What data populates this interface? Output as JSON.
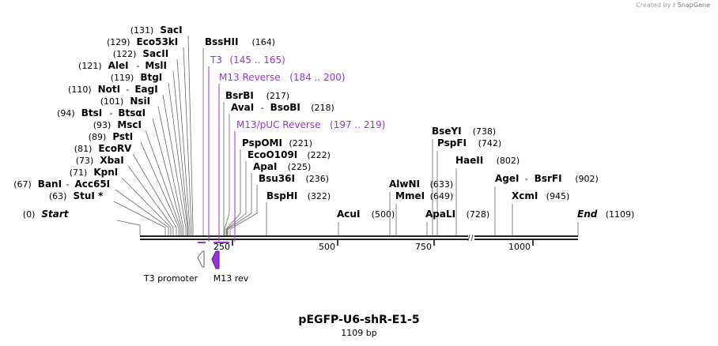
{
  "credit": {
    "prefix": "Created by",
    "brand": "SnapGene"
  },
  "plasmid": {
    "name": "pEGFP-U6-shR-E1-5",
    "length_label": "1109 bp"
  },
  "scale": {
    "ticks": [
      "250",
      "500",
      "750",
      "1000"
    ]
  },
  "sites_left": [
    {
      "pos": "(131)",
      "name": "SacI"
    },
    {
      "pos": "(129)",
      "name": "Eco53kI"
    },
    {
      "pos": "(122)",
      "name": "SacII"
    },
    {
      "pos": "(121)",
      "name": "AleI",
      "sep": "-",
      "name2": "MslI"
    },
    {
      "pos": "(119)",
      "name": "BtgI"
    },
    {
      "pos": "(110)",
      "name": "NotI",
      "sep": "-",
      "name2": "EagI"
    },
    {
      "pos": "(101)",
      "name": "NsiI"
    },
    {
      "pos": "(94)",
      "name": "BtsI",
      "sep": "-",
      "name2": "BtsαI"
    },
    {
      "pos": "(93)",
      "name": "MscI"
    },
    {
      "pos": "(89)",
      "name": "PstI"
    },
    {
      "pos": "(81)",
      "name": "EcoRV"
    },
    {
      "pos": "(73)",
      "name": "XbaI"
    },
    {
      "pos": "(71)",
      "name": "KpnI"
    },
    {
      "pos": "(67)",
      "name": "BanI",
      "sep": "-",
      "name2": "Acc65I"
    },
    {
      "pos": "(63)",
      "name": "StuI *"
    },
    {
      "pos": "(0)",
      "name": "Start"
    }
  ],
  "sites_mid": [
    {
      "name": "BssHII",
      "pos": "(164)"
    },
    {
      "name": "BsrBI",
      "pos": "(217)"
    },
    {
      "name": "AvaI",
      "sep": "-",
      "name2": "BsoBI",
      "pos": "(218)"
    },
    {
      "name": "PspOMI",
      "pos": "(221)"
    },
    {
      "name": "EcoO109I",
      "pos": "(222)"
    },
    {
      "name": "ApaI",
      "pos": "(225)"
    },
    {
      "name": "Bsu36I",
      "pos": "(236)"
    },
    {
      "name": "BspHI",
      "pos": "(322)"
    }
  ],
  "primers": [
    {
      "name": "T3",
      "range": "(145 .. 165)"
    },
    {
      "name": "M13 Reverse",
      "range": "(184 .. 200)"
    },
    {
      "name": "M13/pUC Reverse",
      "range": "(197 .. 219)"
    }
  ],
  "sites_right": [
    {
      "name": "AcuI",
      "pos": "(500)"
    },
    {
      "name": "AlwNI",
      "pos": "(633)"
    },
    {
      "name": "MmeI",
      "pos": "(649)"
    },
    {
      "name": "BseYI",
      "pos": "(738)"
    },
    {
      "name": "PspFI",
      "pos": "(742)"
    },
    {
      "name": "ApaLI",
      "pos": "(728)"
    },
    {
      "name": "HaeII",
      "pos": "(802)"
    },
    {
      "name": "AgeI",
      "sep": "-",
      "name2": "BsrFI",
      "pos": "(902)"
    },
    {
      "name": "XcmI",
      "pos": "(945)"
    },
    {
      "name": "End",
      "pos": "(1109)"
    }
  ],
  "features": [
    {
      "name": "T3 promoter"
    },
    {
      "name": "M13 rev"
    }
  ],
  "colors": {
    "primer": "#9a30d8",
    "feature_fill": "#9a30d8",
    "backbone": "#222222"
  }
}
